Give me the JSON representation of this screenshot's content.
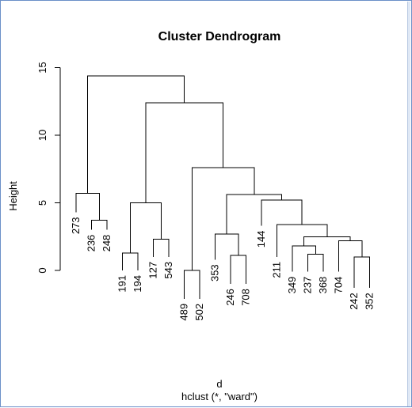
{
  "chart_data": {
    "type": "dendrogram",
    "title": "Cluster Dendrogram",
    "ylabel": "Height",
    "xlabel": "d",
    "sublabel": "hclust (*, \"ward\")",
    "ylim": [
      0,
      15
    ],
    "yticks": [
      0,
      5,
      10,
      15
    ],
    "leaf_order": [
      "273",
      "236",
      "248",
      "191",
      "194",
      "127",
      "543",
      "489",
      "502",
      "353",
      "246",
      "708",
      "144",
      "211",
      "349",
      "237",
      "368",
      "704",
      "242",
      "352"
    ],
    "leaf_label_height": [
      4.3,
      3.0,
      3.0,
      0.0,
      0.0,
      1.0,
      1.0,
      -2.1,
      -2.1,
      0.8,
      -1.0,
      -1.0,
      3.3,
      1.0,
      -0.1,
      -0.1,
      -0.1,
      -0.1,
      -1.3,
      -1.3
    ],
    "merges": [
      {
        "a": "L:489",
        "b": "L:502",
        "height": 0.0
      },
      {
        "a": "L:242",
        "b": "L:352",
        "height": 1.0
      },
      {
        "a": "L:246",
        "b": "L:708",
        "height": 1.1
      },
      {
        "a": "L:237",
        "b": "L:368",
        "height": 1.2
      },
      {
        "a": "L:191",
        "b": "L:194",
        "height": 1.3
      },
      {
        "a": "L:349",
        "b": "M:4",
        "height": 1.8
      },
      {
        "a": "L:704",
        "b": "M:2",
        "height": 2.2
      },
      {
        "a": "L:127",
        "b": "L:543",
        "height": 2.3
      },
      {
        "a": "M:6",
        "b": "M:7",
        "height": 2.5
      },
      {
        "a": "L:353",
        "b": "M:3",
        "height": 2.7
      },
      {
        "a": "L:211",
        "b": "M:9",
        "height": 3.4
      },
      {
        "a": "L:236",
        "b": "L:248",
        "height": 3.7
      },
      {
        "a": "M:5",
        "b": "M:8",
        "height": 5.0
      },
      {
        "a": "L:144",
        "b": "M:11",
        "height": 5.2
      },
      {
        "a": "M:10",
        "b": "M:14",
        "height": 5.6
      },
      {
        "a": "L:273",
        "b": "M:12",
        "height": 5.7
      },
      {
        "a": "M:1",
        "b": "M:15",
        "height": 7.6
      },
      {
        "a": "M:13",
        "b": "M:17",
        "height": 12.4
      },
      {
        "a": "M:16",
        "b": "M:18",
        "height": 14.4
      }
    ]
  }
}
